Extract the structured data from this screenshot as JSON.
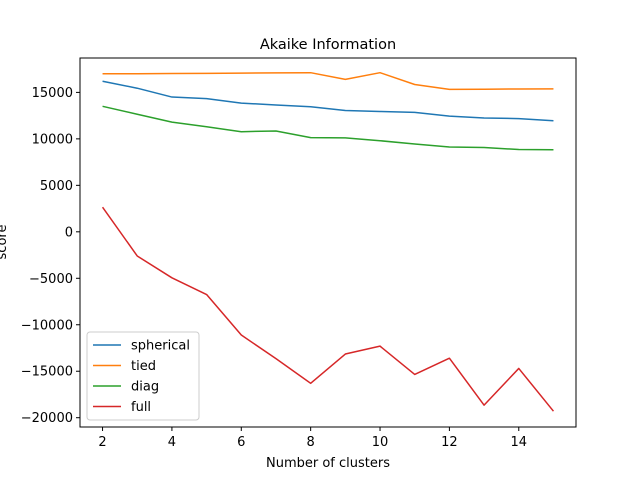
{
  "chart_data": {
    "type": "line",
    "title": "Akaike Information",
    "xlabel": "Number of clusters",
    "ylabel": "score",
    "xlim": [
      1.35,
      15.65
    ],
    "ylim": [
      -21000,
      18700
    ],
    "xticks": [
      2,
      4,
      6,
      8,
      10,
      12,
      14
    ],
    "yticks": [
      -20000,
      -15000,
      -10000,
      -5000,
      0,
      5000,
      10000,
      15000
    ],
    "grid": false,
    "legend": "lower-left",
    "x": [
      2,
      3,
      4,
      5,
      6,
      7,
      8,
      9,
      10,
      11,
      12,
      13,
      14,
      15
    ],
    "series": [
      {
        "name": "spherical",
        "color": "#1f77b4",
        "values": [
          16200,
          15450,
          14500,
          14330,
          13850,
          13650,
          13450,
          13050,
          12950,
          12850,
          12450,
          12250,
          12180,
          11950
        ]
      },
      {
        "name": "tied",
        "color": "#ff7f0e",
        "values": [
          17000,
          17010,
          17030,
          17050,
          17070,
          17100,
          17120,
          16400,
          17120,
          15850,
          15330,
          15340,
          15370,
          15380
        ]
      },
      {
        "name": "diag",
        "color": "#2ca02c",
        "values": [
          13500,
          12650,
          11800,
          11300,
          10770,
          10850,
          10130,
          10100,
          9800,
          9450,
          9130,
          9070,
          8850,
          8830
        ]
      },
      {
        "name": "full",
        "color": "#d62728",
        "values": [
          2650,
          -2600,
          -4950,
          -6750,
          -11100,
          -13650,
          -16300,
          -13150,
          -12300,
          -15350,
          -13600,
          -18650,
          -14700,
          -19300
        ]
      }
    ]
  }
}
